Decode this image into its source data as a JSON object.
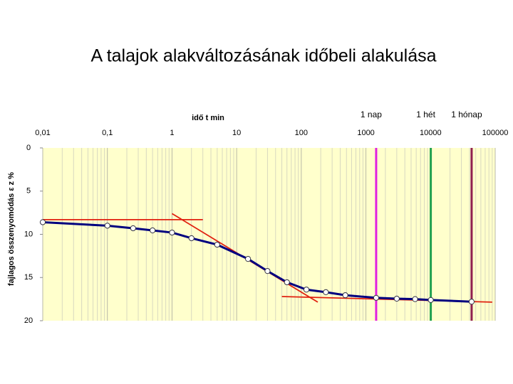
{
  "chart_data": {
    "type": "line",
    "title": "A talajok alakváltozásának időbeli alakulása",
    "x_label": "idő  t  min",
    "y_label": "fajlagos összenyomódás  ε z  %",
    "x_log": true,
    "y_inverted": true,
    "background": "#ffffcc",
    "xlim": [
      0.01,
      100000
    ],
    "xticks": [
      {
        "value": 0.01,
        "label": "0,01"
      },
      {
        "value": 0.1,
        "label": "0,1"
      },
      1,
      10,
      100,
      1000,
      10000,
      100000
    ],
    "ylim": [
      0,
      20
    ],
    "yticks": [
      0,
      5,
      10,
      15,
      20
    ],
    "series": [
      {
        "color": "#000080",
        "x": [
          0.01,
          0.1,
          0.25,
          0.5,
          1,
          2,
          5,
          15,
          30,
          60,
          120,
          240,
          480,
          1440,
          3000,
          5760,
          10080,
          43200
        ],
        "values": [
          8.6,
          9.0,
          9.3,
          9.55,
          9.8,
          10.45,
          11.2,
          12.85,
          14.25,
          15.55,
          16.4,
          16.7,
          17.05,
          17.35,
          17.45,
          17.5,
          17.6,
          17.8
        ]
      }
    ],
    "tangents": [
      {
        "color": "#e02010",
        "x": [
          0.01,
          3
        ],
        "values": [
          8.3,
          8.3
        ]
      },
      {
        "color": "#e02010",
        "x": [
          1,
          180
        ],
        "values": [
          7.6,
          17.85
        ]
      },
      {
        "color": "#e02010",
        "x": [
          50,
          90000
        ],
        "values": [
          17.2,
          17.85
        ]
      }
    ],
    "markers": [
      {
        "label": "1 nap",
        "value": 1440,
        "color": "#e020e0"
      },
      {
        "label": "1 hét",
        "value": 10080,
        "color": "#20a050"
      },
      {
        "label": "1 hónap",
        "value": 43200,
        "color": "#902050"
      }
    ]
  }
}
